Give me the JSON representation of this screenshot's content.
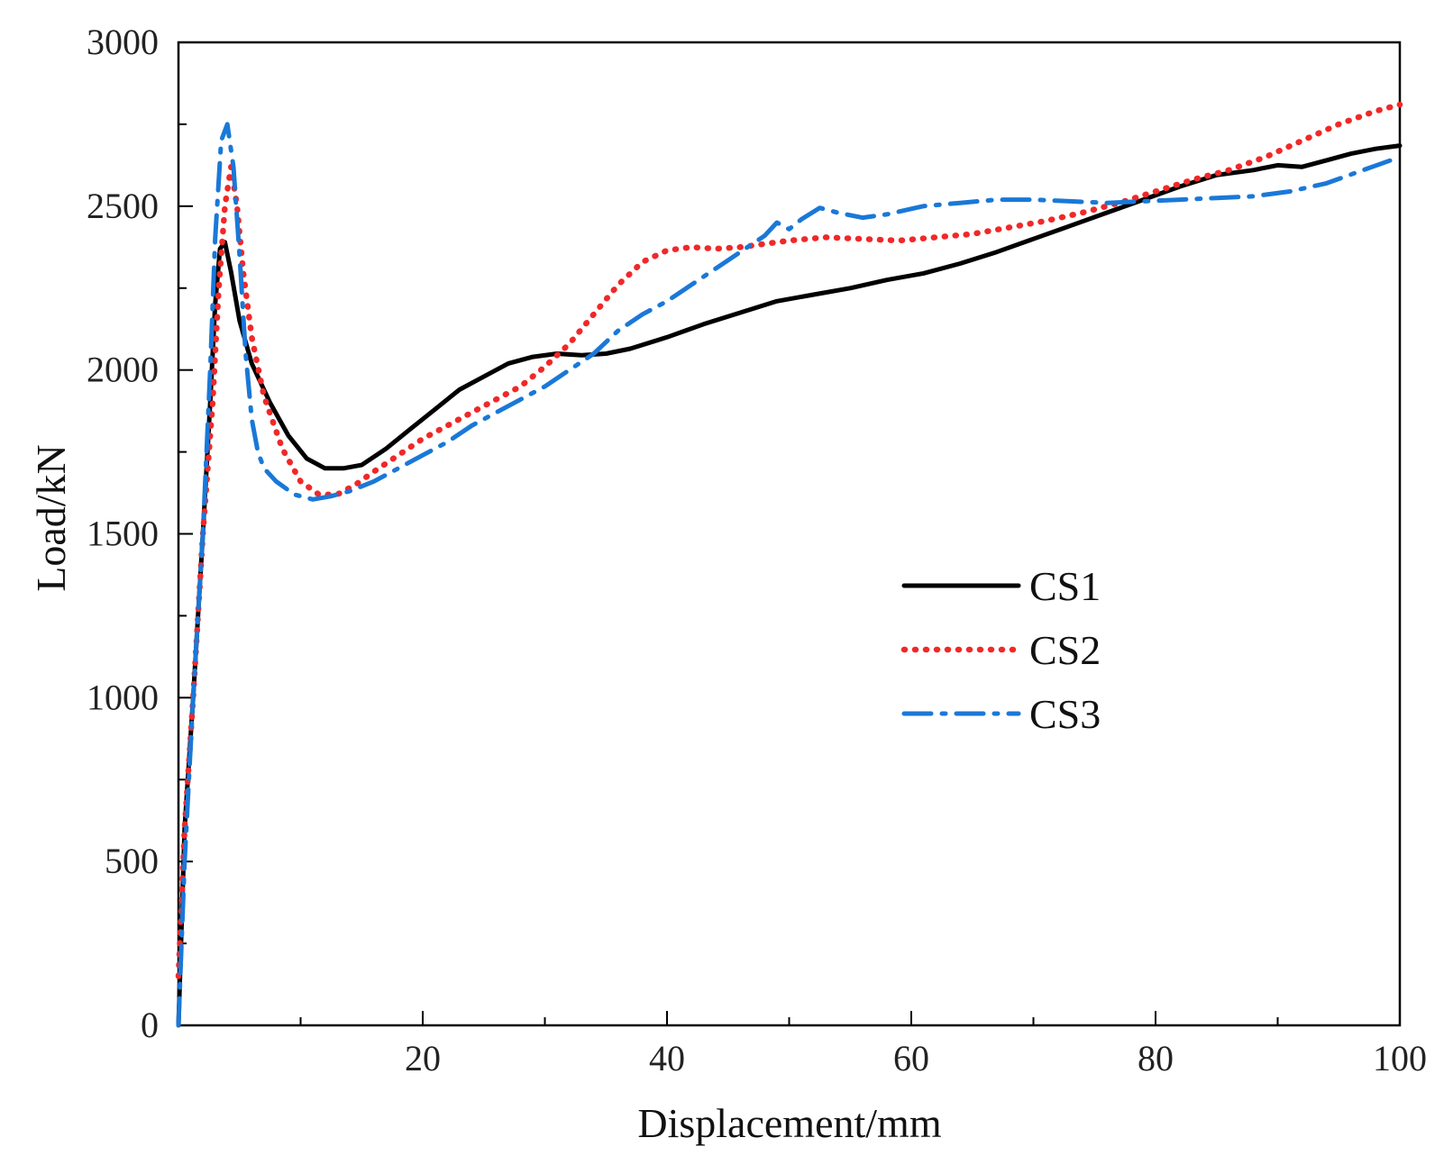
{
  "chart_data": {
    "type": "line",
    "title": "",
    "xlabel": "Displacement/mm",
    "ylabel": "Load/kN",
    "xlim": [
      0,
      100
    ],
    "ylim": [
      0,
      3000
    ],
    "xticks": [
      20,
      40,
      60,
      80,
      100
    ],
    "yticks": [
      0,
      500,
      1000,
      1500,
      2000,
      2500,
      3000
    ],
    "xtick_labels": [
      "20",
      "40",
      "60",
      "80",
      "100"
    ],
    "ytick_labels": [
      "0",
      "500",
      "1000",
      "1500",
      "2000",
      "2500",
      "3000"
    ],
    "grid": false,
    "legend_position": "center-right",
    "series": [
      {
        "name": "CS1",
        "color": "#000000",
        "dash": "solid",
        "x": [
          0,
          0.5,
          1.2,
          2.0,
          2.6,
          3.0,
          3.4,
          3.8,
          4.3,
          5.0,
          6.0,
          7.5,
          9.0,
          10.5,
          12.0,
          13.5,
          15.0,
          17.0,
          19.0,
          21.0,
          23.0,
          25.0,
          27.0,
          29.0,
          31.0,
          33.0,
          35.0,
          37.0,
          40.0,
          43.0,
          46.0,
          49.0,
          52.0,
          55.0,
          58.0,
          61.0,
          64.0,
          67.0,
          70.0,
          73.0,
          76.0,
          79.0,
          82.0,
          85.0,
          88.0,
          90.0,
          92.0,
          94.0,
          96.0,
          98.0,
          100.0
        ],
        "y": [
          0,
          600,
          1000,
          1500,
          1900,
          2200,
          2370,
          2390,
          2300,
          2150,
          2020,
          1900,
          1800,
          1730,
          1700,
          1700,
          1710,
          1760,
          1820,
          1880,
          1940,
          1980,
          2020,
          2040,
          2050,
          2045,
          2050,
          2065,
          2100,
          2140,
          2175,
          2210,
          2230,
          2250,
          2275,
          2295,
          2325,
          2360,
          2400,
          2440,
          2480,
          2520,
          2560,
          2595,
          2610,
          2625,
          2620,
          2640,
          2660,
          2675,
          2685
        ]
      },
      {
        "name": "CS2",
        "color": "#f02828",
        "dash": "dotted",
        "x": [
          0,
          0.5,
          1.2,
          2.0,
          2.8,
          3.3,
          3.8,
          4.3,
          4.8,
          5.3,
          6.0,
          7.0,
          8.5,
          10.0,
          11.5,
          13.0,
          14.5,
          16.0,
          18.0,
          20.0,
          22.0,
          24.0,
          26.0,
          28.0,
          30.0,
          32.0,
          34.0,
          36.0,
          38.0,
          40.0,
          42.0,
          44.0,
          46.0,
          48.0,
          50.0,
          53.0,
          56.0,
          59.0,
          62.0,
          65.0,
          68.0,
          71.0,
          74.0,
          77.0,
          80.0,
          83.0,
          86.0,
          89.0,
          92.0,
          95.0,
          98.0,
          100.0
        ],
        "y": [
          150,
          600,
          1000,
          1500,
          1900,
          2250,
          2500,
          2620,
          2500,
          2300,
          2100,
          1920,
          1760,
          1660,
          1620,
          1620,
          1650,
          1690,
          1740,
          1790,
          1830,
          1870,
          1910,
          1950,
          2010,
          2080,
          2170,
          2260,
          2330,
          2365,
          2375,
          2370,
          2375,
          2385,
          2395,
          2405,
          2400,
          2395,
          2405,
          2415,
          2435,
          2455,
          2480,
          2510,
          2545,
          2580,
          2610,
          2650,
          2700,
          2750,
          2790,
          2810
        ]
      },
      {
        "name": "CS3",
        "color": "#1a78d8",
        "dash": "dashdot",
        "x": [
          0,
          0.5,
          1.2,
          2.0,
          2.6,
          3.0,
          3.5,
          4.0,
          4.5,
          5.0,
          5.5,
          6.0,
          6.5,
          7.0,
          8.0,
          9.5,
          11.0,
          12.5,
          14.0,
          16.0,
          18.0,
          20.0,
          22.0,
          24.0,
          26.0,
          28.0,
          30.0,
          32.0,
          34.0,
          36.0,
          38.0,
          40.0,
          42.0,
          44.0,
          46.0,
          48.0,
          49.0,
          50.0,
          51.0,
          52.5,
          54.0,
          56.0,
          58.0,
          61.0,
          64.0,
          67.0,
          70.0,
          73.0,
          76.0,
          79.0,
          82.0,
          85.0,
          88.0,
          91.0,
          94.0,
          97.0,
          100.0
        ],
        "y": [
          0,
          500,
          1000,
          1500,
          2000,
          2400,
          2700,
          2750,
          2620,
          2350,
          2050,
          1850,
          1750,
          1700,
          1660,
          1620,
          1605,
          1615,
          1630,
          1660,
          1700,
          1740,
          1780,
          1830,
          1870,
          1910,
          1950,
          2000,
          2050,
          2120,
          2170,
          2210,
          2260,
          2310,
          2360,
          2410,
          2450,
          2430,
          2460,
          2495,
          2480,
          2465,
          2475,
          2500,
          2510,
          2520,
          2520,
          2515,
          2510,
          2515,
          2520,
          2525,
          2530,
          2545,
          2570,
          2610,
          2650
        ]
      }
    ]
  }
}
